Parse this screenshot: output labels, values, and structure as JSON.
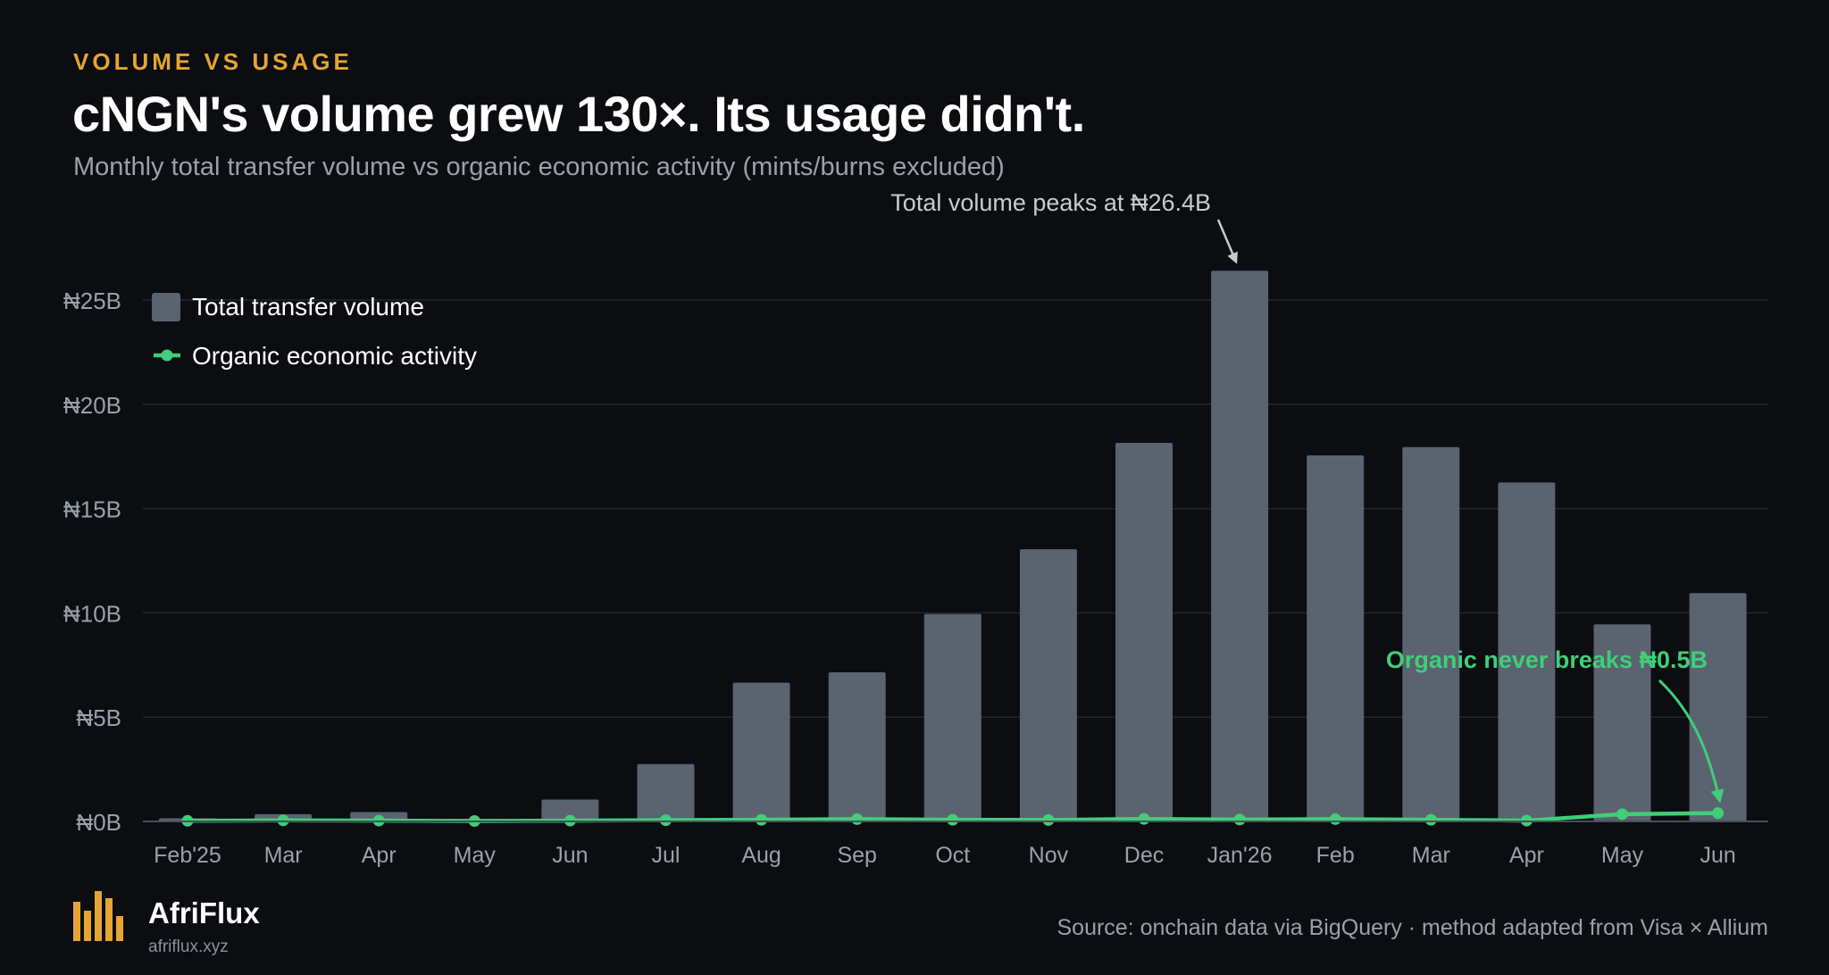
{
  "header": {
    "kicker": "VOLUME VS USAGE",
    "title": "cNGN's volume grew 130×. Its usage didn't.",
    "subtitle": "Monthly total transfer volume vs organic economic activity (mints/burns excluded)"
  },
  "chart_data": {
    "type": "bar",
    "categories": [
      "Feb'25",
      "Mar",
      "Apr",
      "May",
      "Jun",
      "Jul",
      "Aug",
      "Sep",
      "Oct",
      "Nov",
      "Dec",
      "Jan'26",
      "Feb",
      "Mar",
      "Apr",
      "May",
      "Jun"
    ],
    "series": [
      {
        "name": "Total transfer volume",
        "type": "bar",
        "color": "#5b6270",
        "values": [
          0.15,
          0.35,
          0.45,
          0.12,
          1.05,
          2.75,
          6.65,
          7.15,
          9.95,
          13.05,
          18.15,
          26.4,
          17.55,
          17.95,
          16.25,
          9.45,
          10.95
        ]
      },
      {
        "name": "Organic economic activity",
        "type": "line",
        "color": "#3ecf78",
        "values": [
          0.03,
          0.05,
          0.04,
          0.02,
          0.04,
          0.06,
          0.08,
          0.11,
          0.08,
          0.07,
          0.12,
          0.09,
          0.11,
          0.08,
          0.04,
          0.35,
          0.4
        ]
      }
    ],
    "ylim": [
      0,
      26.5
    ],
    "yticks": [
      0,
      5,
      10,
      15,
      20,
      25
    ],
    "ytick_labels": [
      "₦0B",
      "₦5B",
      "₦10B",
      "₦15B",
      "₦20B",
      "₦25B"
    ],
    "grid": true,
    "legend_position": "top-left",
    "annotations": [
      {
        "text": "Total volume peaks at ₦26.4B",
        "target_category": "Jan'26",
        "target_value": 26.4,
        "color": "#c7cbd1"
      },
      {
        "text": "Organic never breaks ₦0.5B",
        "target_category": "Jun",
        "target_value": 0.4,
        "color": "#3ecf78"
      }
    ]
  },
  "footer": {
    "brand": "AfriFlux",
    "url": "afriflux.xyz",
    "source": "Source: onchain data via BigQuery  ·  method adapted from Visa × Allium",
    "brand_color": "#e5a532",
    "logo_icon": "bar-chart-logo-icon"
  }
}
